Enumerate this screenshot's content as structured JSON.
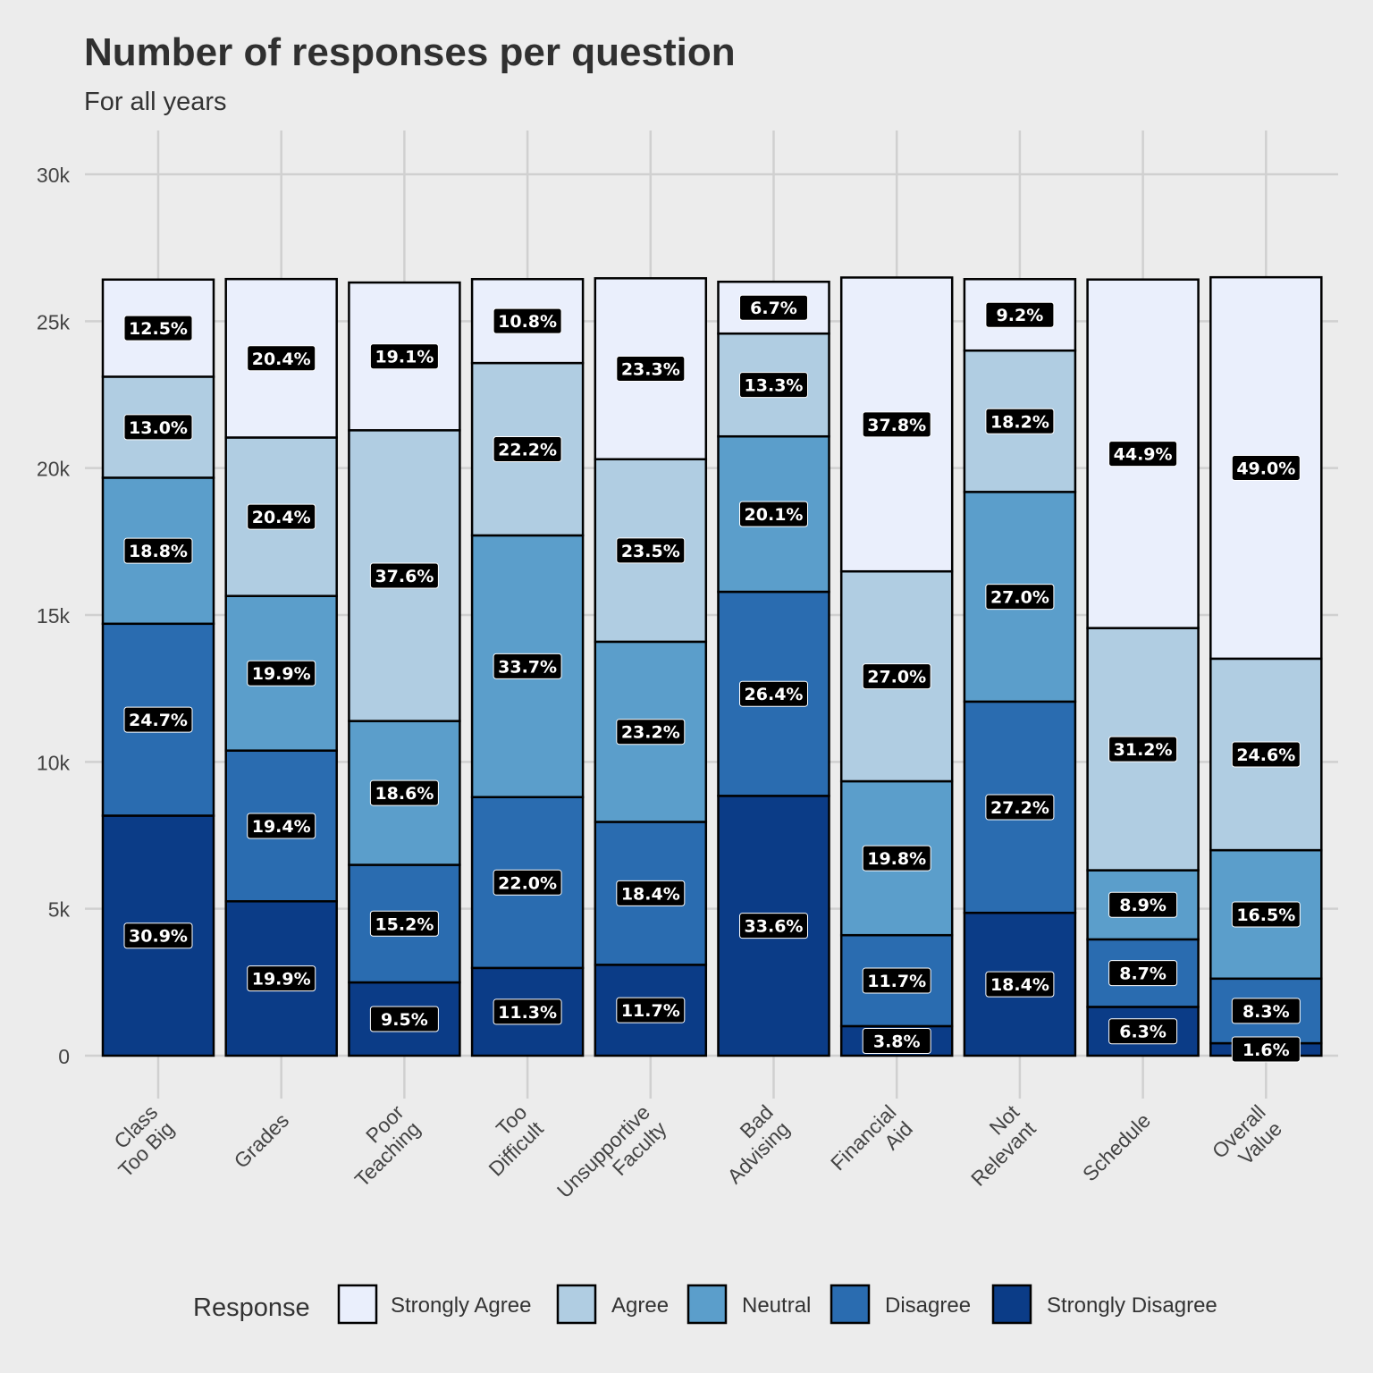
{
  "chart_data": {
    "type": "bar",
    "stacked": true,
    "title": "Number of responses per question",
    "subtitle": "For all years",
    "ylabel": "",
    "xlabel": "",
    "ylim": [
      0,
      30000
    ],
    "y_ticks": [
      {
        "value": 0,
        "label": "0"
      },
      {
        "value": 5000,
        "label": "5k"
      },
      {
        "value": 10000,
        "label": "10k"
      },
      {
        "value": 15000,
        "label": "15k"
      },
      {
        "value": 20000,
        "label": "20k"
      },
      {
        "value": 25000,
        "label": "25k"
      },
      {
        "value": 30000,
        "label": "30k"
      }
    ],
    "grid": true,
    "legend": {
      "position": "bottom",
      "title": "Response"
    },
    "categories": [
      [
        "Class",
        "Too Big"
      ],
      [
        "Grades"
      ],
      [
        "Poor",
        "Teaching"
      ],
      [
        "Too",
        "Difficult"
      ],
      [
        "Unsupportive",
        "Faculty"
      ],
      [
        "Bad",
        "Advising"
      ],
      [
        "Financial",
        "Aid"
      ],
      [
        "Not",
        "Relevant"
      ],
      [
        "Schedule"
      ],
      [
        "Overall",
        "Value"
      ]
    ],
    "series": [
      {
        "name": "Strongly Disagree",
        "color": "#0b3c87",
        "values": [
          8170,
          5255,
          2494,
          2986,
          3093,
          8843,
          1006,
          4862,
          1660,
          424
        ],
        "labels": [
          "30.9%",
          "19.9%",
          "9.5%",
          "11.3%",
          "11.7%",
          "33.6%",
          "3.8%",
          "18.4%",
          "6.3%",
          "1.6%"
        ]
      },
      {
        "name": "Disagree",
        "color": "#2a6cb0",
        "values": [
          6532,
          5130,
          4001,
          5815,
          4864,
          6947,
          3096,
          7190,
          2299,
          2199
        ],
        "labels": [
          "24.7%",
          "19.4%",
          "15.2%",
          "22.0%",
          "18.4%",
          "26.4%",
          "11.7%",
          "27.2%",
          "8.7%",
          "8.3%"
        ]
      },
      {
        "name": "Neutral",
        "color": "#5b9ecb",
        "values": [
          4971,
          5262,
          4896,
          8908,
          6133,
          5289,
          5239,
          7137,
          2352,
          4372
        ],
        "labels": [
          "18.8%",
          "19.9%",
          "18.6%",
          "33.7%",
          "23.2%",
          "20.1%",
          "19.8%",
          "27.0%",
          "8.9%",
          "16.5%"
        ]
      },
      {
        "name": "Agree",
        "color": "#b0cde2",
        "values": [
          3438,
          5394,
          9897,
          5868,
          6212,
          3500,
          7144,
          4811,
          8244,
          6518
        ],
        "labels": [
          "13.0%",
          "20.4%",
          "37.6%",
          "22.2%",
          "23.5%",
          "13.3%",
          "27.0%",
          "18.2%",
          "31.2%",
          "24.6%"
        ]
      },
      {
        "name": "Strongly Agree",
        "color": "#eaeffc",
        "values": [
          3306,
          5394,
          5028,
          2855,
          6159,
          1763,
          10002,
          2432,
          11864,
          12983
        ],
        "labels": [
          "12.5%",
          "20.4%",
          "19.1%",
          "10.8%",
          "23.3%",
          "6.7%",
          "37.8%",
          "9.2%",
          "44.9%",
          "49.0%"
        ]
      }
    ]
  }
}
